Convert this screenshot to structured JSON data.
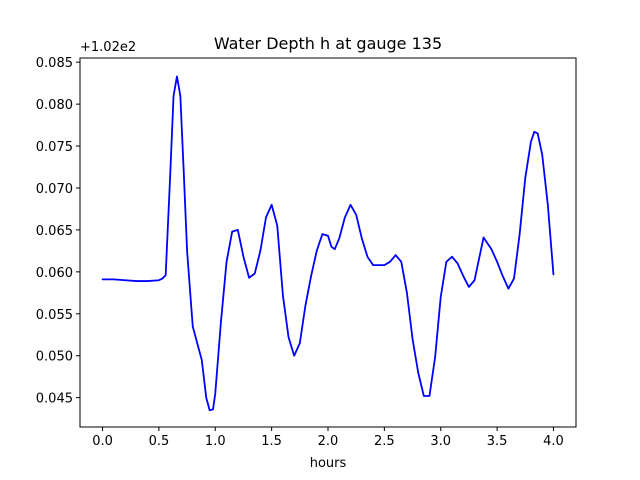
{
  "chart_data": {
    "type": "line",
    "title": "Water Depth h at gauge 135",
    "xlabel": "hours",
    "ylabel": "",
    "y_offset_text": "+1.02e2",
    "xlim": [
      -0.2,
      4.2
    ],
    "ylim": [
      0.0415,
      0.0855
    ],
    "x_ticks": [
      0.0,
      0.5,
      1.0,
      1.5,
      2.0,
      2.5,
      3.0,
      3.5,
      4.0
    ],
    "x_tick_labels": [
      "0.0",
      "0.5",
      "1.0",
      "1.5",
      "2.0",
      "2.5",
      "3.0",
      "3.5",
      "4.0"
    ],
    "y_ticks": [
      0.045,
      0.05,
      0.055,
      0.06,
      0.065,
      0.07,
      0.075,
      0.08,
      0.085
    ],
    "y_tick_labels": [
      "0.045",
      "0.050",
      "0.055",
      "0.060",
      "0.065",
      "0.070",
      "0.075",
      "0.080",
      "0.085"
    ],
    "grid": false,
    "series": [
      {
        "color": "#0000ff",
        "x": [
          0.0,
          0.1,
          0.2,
          0.3,
          0.4,
          0.5,
          0.53,
          0.56,
          0.6,
          0.63,
          0.66,
          0.69,
          0.72,
          0.75,
          0.8,
          0.85,
          0.88,
          0.92,
          0.95,
          0.98,
          1.0,
          1.05,
          1.1,
          1.15,
          1.2,
          1.25,
          1.3,
          1.35,
          1.4,
          1.45,
          1.5,
          1.55,
          1.6,
          1.65,
          1.7,
          1.75,
          1.8,
          1.85,
          1.9,
          1.95,
          2.0,
          2.03,
          2.06,
          2.1,
          2.15,
          2.2,
          2.25,
          2.3,
          2.35,
          2.4,
          2.45,
          2.5,
          2.55,
          2.6,
          2.65,
          2.7,
          2.75,
          2.8,
          2.85,
          2.9,
          2.95,
          3.0,
          3.05,
          3.1,
          3.15,
          3.2,
          3.25,
          3.3,
          3.35,
          3.38,
          3.45,
          3.5,
          3.55,
          3.6,
          3.65,
          3.7,
          3.75,
          3.8,
          3.83,
          3.86,
          3.9,
          3.95,
          4.0
        ],
        "y": [
          0.0591,
          0.0591,
          0.059,
          0.0589,
          0.0589,
          0.059,
          0.0592,
          0.0596,
          0.0715,
          0.081,
          0.0833,
          0.081,
          0.072,
          0.0625,
          0.0535,
          0.051,
          0.0495,
          0.045,
          0.0435,
          0.0436,
          0.0455,
          0.054,
          0.0612,
          0.0648,
          0.065,
          0.0618,
          0.0593,
          0.0598,
          0.0625,
          0.0665,
          0.068,
          0.0655,
          0.0572,
          0.0522,
          0.05,
          0.0515,
          0.056,
          0.0595,
          0.0625,
          0.0645,
          0.0643,
          0.063,
          0.0627,
          0.064,
          0.0665,
          0.068,
          0.0668,
          0.064,
          0.0618,
          0.0608,
          0.0608,
          0.0608,
          0.0612,
          0.062,
          0.0612,
          0.0575,
          0.052,
          0.048,
          0.0452,
          0.0452,
          0.0498,
          0.057,
          0.0612,
          0.0618,
          0.061,
          0.0595,
          0.0582,
          0.059,
          0.0622,
          0.0641,
          0.0627,
          0.0612,
          0.0595,
          0.058,
          0.0592,
          0.0645,
          0.0712,
          0.0755,
          0.0767,
          0.0765,
          0.074,
          0.068,
          0.0597
        ]
      }
    ]
  }
}
